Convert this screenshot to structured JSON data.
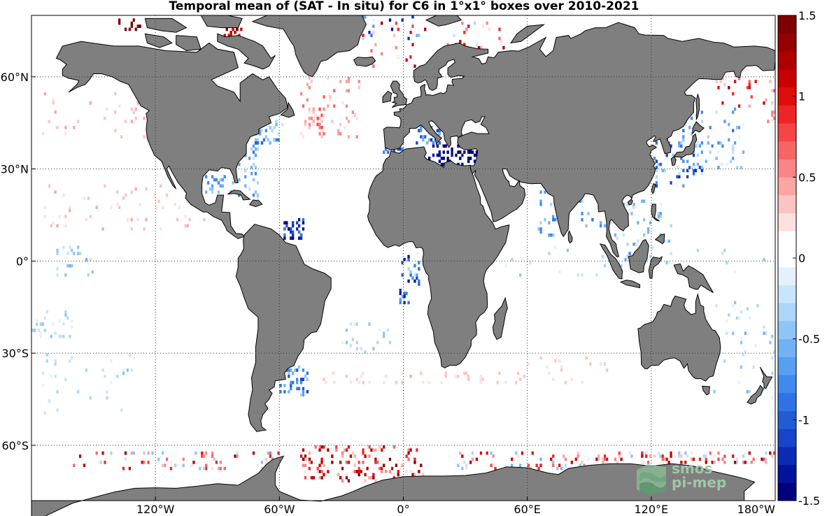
{
  "title": "Temporal mean of (SAT - In situ) for C6 in 1°x1° boxes over 2010-2021",
  "map": {
    "projection": "equirectangular",
    "lon_range": [
      -180,
      180
    ],
    "lat_range": [
      -78,
      80
    ],
    "land_color": "#7f7f7f",
    "ocean_color": "#ffffff",
    "graticule": "dotted",
    "lon_ticks": [
      {
        "value": -120,
        "label": "120°W"
      },
      {
        "value": -60,
        "label": "60°W"
      },
      {
        "value": 0,
        "label": "0°"
      },
      {
        "value": 60,
        "label": "60°E"
      },
      {
        "value": 120,
        "label": "120°E"
      },
      {
        "value": 180,
        "label": "180°W"
      }
    ],
    "lat_ticks": [
      {
        "value": 60,
        "label": "60°N"
      },
      {
        "value": 30,
        "label": "30°N"
      },
      {
        "value": 0,
        "label": "0°"
      },
      {
        "value": -30,
        "label": "30°S"
      },
      {
        "value": -60,
        "label": "60°S"
      }
    ]
  },
  "colorbar": {
    "min": -1.5,
    "max": 1.5,
    "ticks": [
      {
        "value": 1.5,
        "label": "1.5"
      },
      {
        "value": 1,
        "label": "1"
      },
      {
        "value": 0.5,
        "label": "0.5"
      },
      {
        "value": 0,
        "label": "0"
      },
      {
        "value": -0.5,
        "label": "-0.5"
      },
      {
        "value": -1,
        "label": "-1"
      },
      {
        "value": -1.5,
        "label": "-1.5"
      }
    ],
    "colors": [
      "#00007f",
      "#00139c",
      "#0a2bb6",
      "#1744c8",
      "#215cd6",
      "#2e73e3",
      "#4089ee",
      "#589ff2",
      "#72b2f4",
      "#8ec5f7",
      "#abd6f9",
      "#c8e5fb",
      "#e4f1fd",
      "#ffffff",
      "#ffffff",
      "#fde1e1",
      "#fcc3c3",
      "#fba5a5",
      "#fa8585",
      "#f86565",
      "#f54545",
      "#ef2525",
      "#e00d0d",
      "#c80000",
      "#ae0000",
      "#950000",
      "#7f0000"
    ]
  },
  "logo": {
    "line1": "smos",
    "line2": "pi-mep"
  }
}
